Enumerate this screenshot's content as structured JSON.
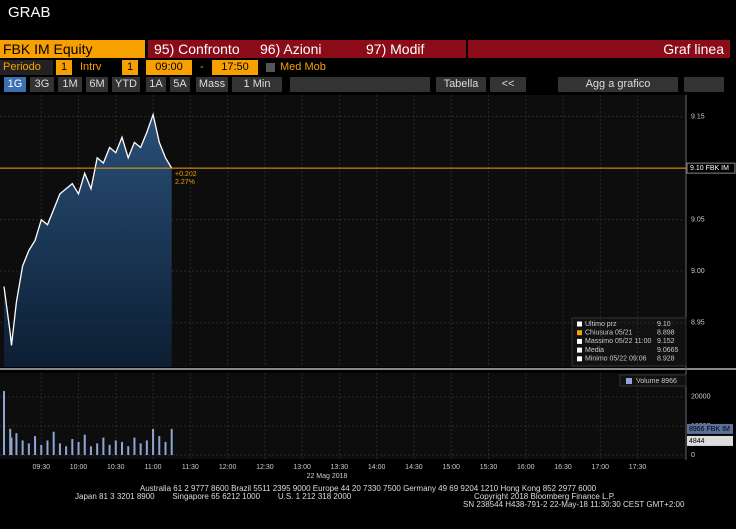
{
  "header": {
    "title": "GRAB"
  },
  "toolbar": {
    "security": "FBK IM Equity",
    "tabs": [
      "95) Confronto",
      "96) Azioni",
      "97) Modif"
    ],
    "mode": "Graf linea",
    "row2": {
      "period_label": "Periodo",
      "period": "1",
      "interval_label": "Intrv",
      "interval": "1",
      "start": "09:00",
      "dash": "-",
      "end": "17:50",
      "moving_avg": "Med Mob"
    },
    "ranges": [
      "1G",
      "3G",
      "1M",
      "6M",
      "YTD",
      "1A",
      "5A",
      "Mass",
      "1 Min"
    ],
    "table": "Tabella",
    "back": "<<",
    "add": "Agg a grafico"
  },
  "chart_data": {
    "type": "line",
    "date_label": "22 Mag 2018",
    "x": [
      "09:00",
      "09:05",
      "09:06",
      "09:10",
      "09:15",
      "09:20",
      "09:25",
      "09:30",
      "09:35",
      "09:40",
      "09:45",
      "09:50",
      "09:55",
      "10:00",
      "10:05",
      "10:10",
      "10:15",
      "10:20",
      "10:25",
      "10:30",
      "10:35",
      "10:40",
      "10:45",
      "10:50",
      "10:55",
      "11:00",
      "11:05",
      "11:10",
      "11:15"
    ],
    "xlim": [
      "09:00",
      "18:09"
    ],
    "xticks": [
      "09:30",
      "10:00",
      "10:30",
      "11:00",
      "11:30",
      "12:00",
      "12:30",
      "13:00",
      "13:30",
      "14:00",
      "14:30",
      "15:00",
      "15:30",
      "16:00",
      "16:30",
      "17:00",
      "17:30"
    ],
    "series": [
      {
        "name": "FBK IM",
        "color": "#ffffff",
        "values": [
          8.985,
          8.94,
          8.928,
          8.97,
          9.005,
          9.02,
          9.03,
          9.05,
          9.045,
          9.06,
          9.075,
          9.08,
          9.085,
          9.075,
          9.095,
          9.08,
          9.11,
          9.105,
          9.12,
          9.115,
          9.13,
          9.11,
          9.125,
          9.12,
          9.135,
          9.152,
          9.125,
          9.11,
          9.1
        ]
      }
    ],
    "ylim": [
      8.907,
      9.171
    ],
    "yticks": [
      8.95,
      {
        "value": 9,
        "label": "9.00"
      },
      9.05,
      {
        "value": 9.1,
        "label": "9.10"
      },
      9.15
    ],
    "grid": true,
    "last_value": 9.1,
    "last_label": "9.10 FBK IM",
    "change": "+0.202",
    "change_pct": "2.27%",
    "legend": [
      [
        "Ultimo prz",
        "9.10"
      ],
      [
        "Chiusura 05/21",
        "8.898"
      ],
      [
        "Massimo 05/22 11:00",
        "9.152"
      ],
      [
        "Media",
        "9.0665"
      ],
      [
        "Minimo 05/22 09:06",
        "8.928"
      ]
    ],
    "volume": {
      "label": "Volume 8966",
      "color": "#8ea6d6",
      "values": [
        22000,
        9000,
        6000,
        7500,
        5000,
        4000,
        6500,
        3500,
        5000,
        8000,
        4000,
        3000,
        5500,
        4500,
        7000,
        3000,
        4000,
        6000,
        3500,
        5000,
        4500,
        3000,
        6000,
        4000,
        5000,
        9000,
        6500,
        4500,
        8966
      ],
      "ylim": [
        0,
        26500
      ],
      "yticks": [
        0,
        10000,
        20000
      ],
      "last": 8966,
      "last_label": "8966 FBK IM",
      "avg": 4844,
      "avg_label": "4844"
    }
  },
  "footer": {
    "line1": "Australia 61 2 9777 8600 Brazil 5511 2395 9000 Europe 44 20 7330 7500 Germany 49 69 9204 1210 Hong Kong 852 2977 6000",
    "line2": "Japan 81 3 3201 8900        Singapore 65 6212 1000        U.S. 1 212 318 2000",
    "line3": "Copyright 2018 Bloomberg Finance L.P.",
    "line4": "SN 238544 H438-791-2 22-May-18 11:30:30 CEST GMT+2:00"
  }
}
